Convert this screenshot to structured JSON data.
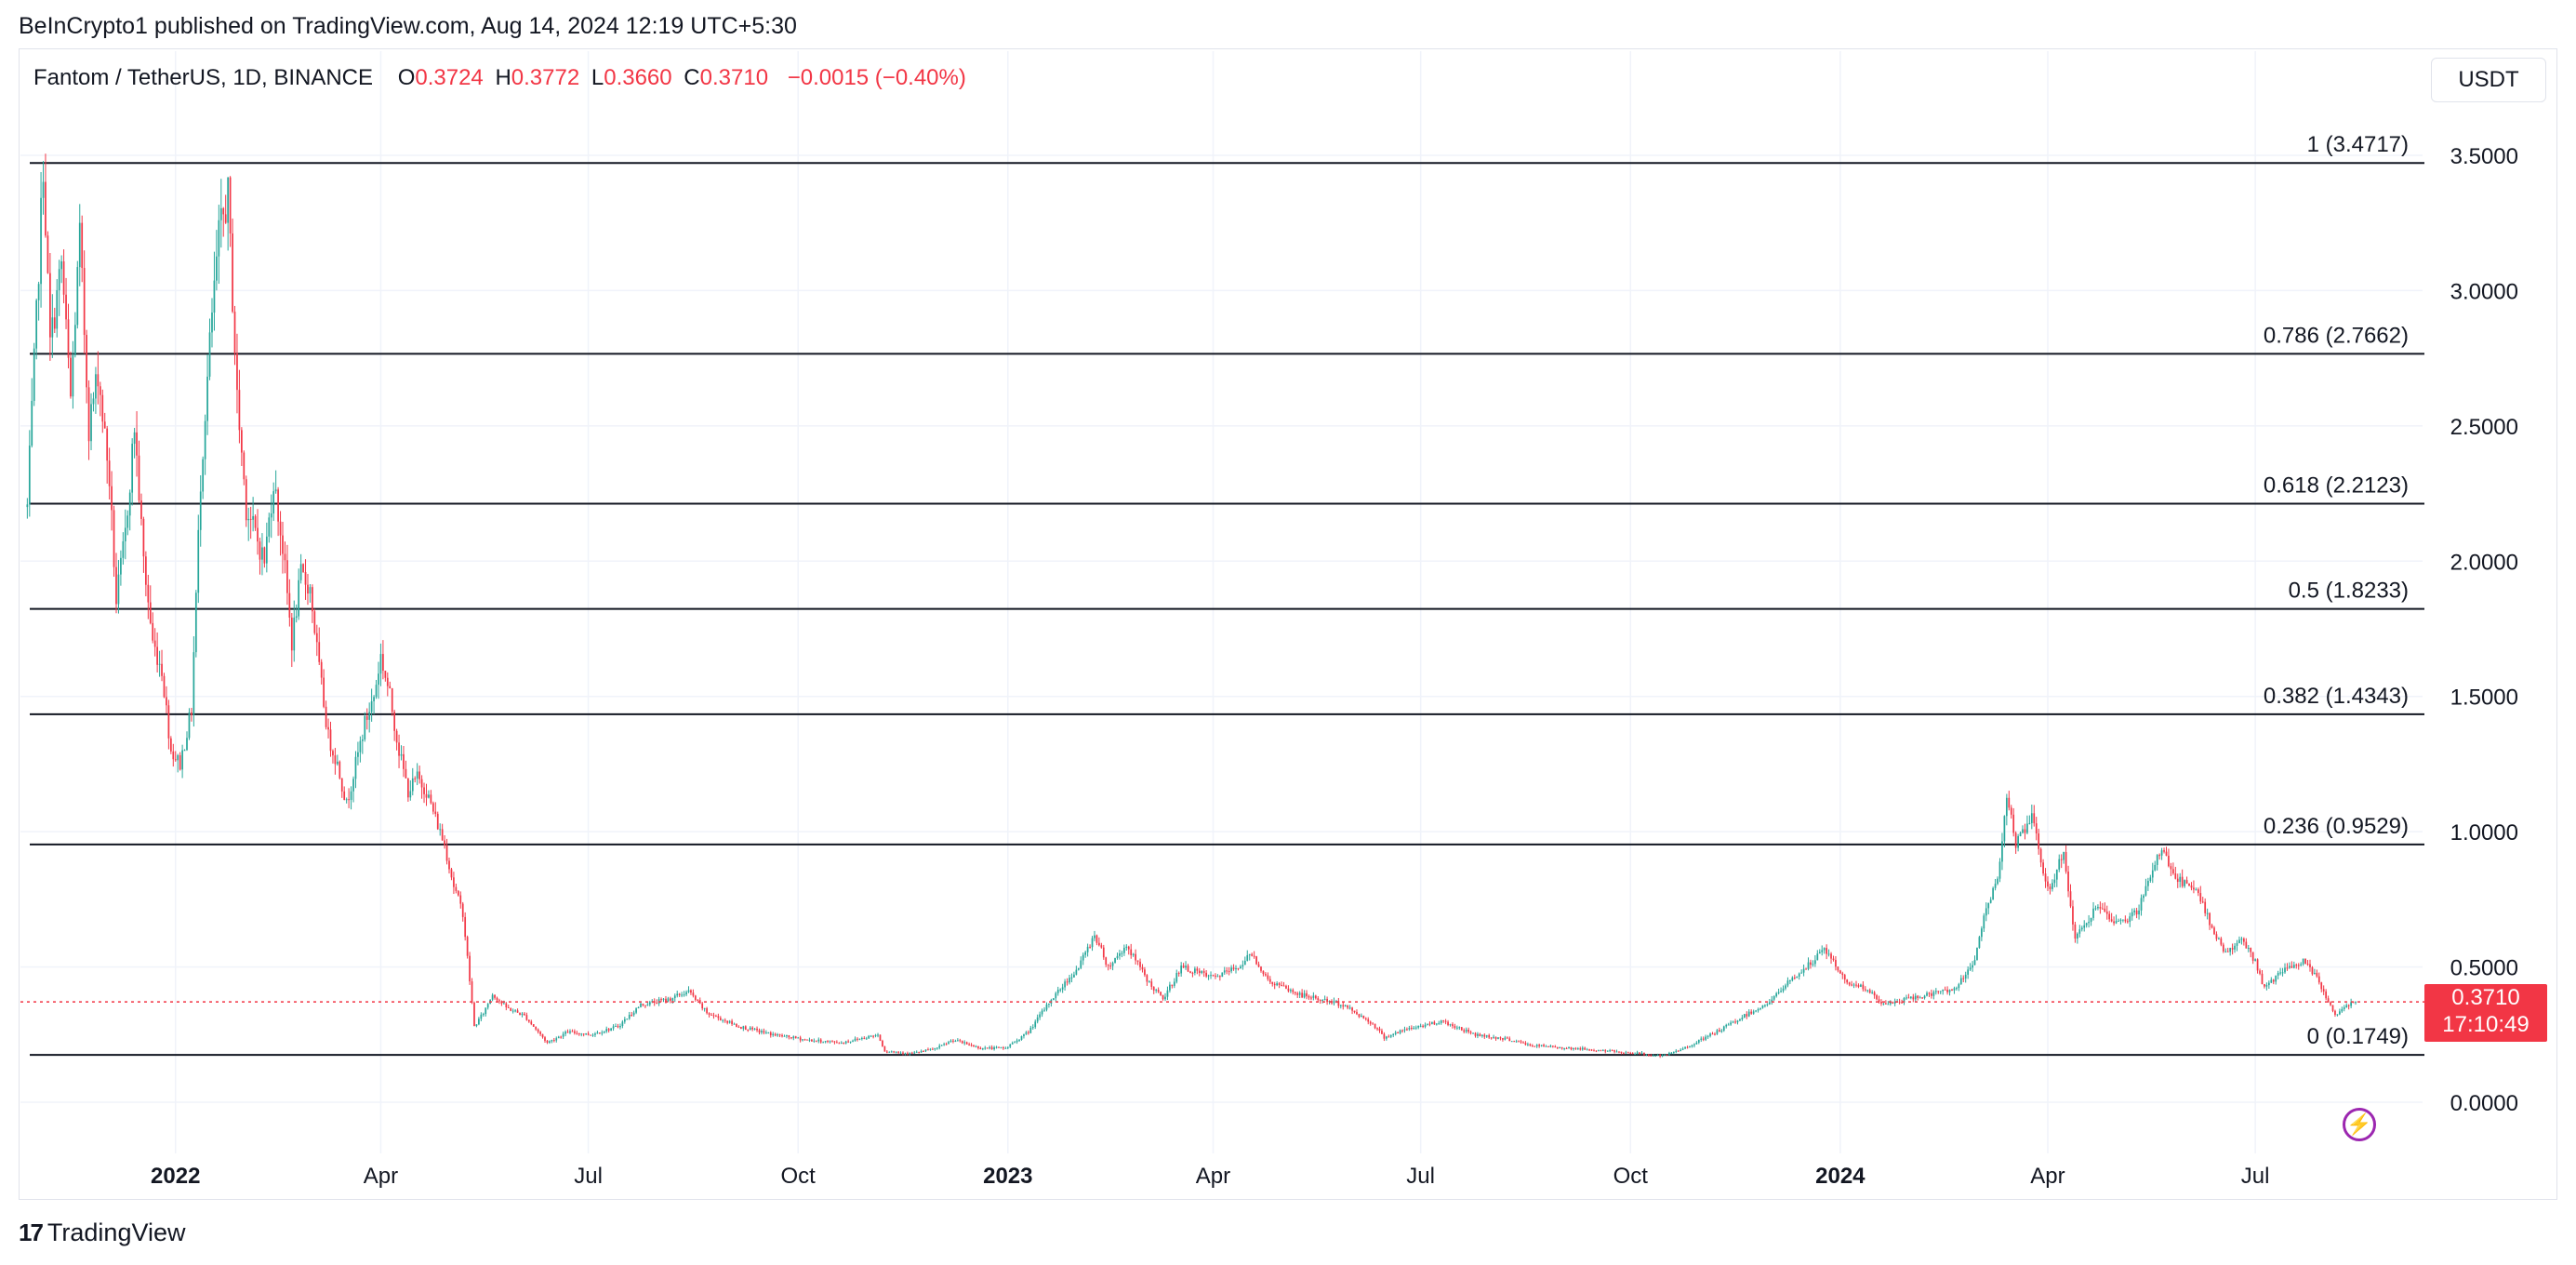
{
  "header": {
    "published_by": "BeInCrypto1 published on TradingView.com, Aug 14, 2024 12:19 UTC+5:30"
  },
  "legend": {
    "symbol": "Fantom / TetherUS, 1D, BINANCE",
    "open_label": "O",
    "open_value": "0.3724",
    "high_label": "H",
    "high_value": "0.3772",
    "low_label": "L",
    "low_value": "0.3660",
    "close_label": "C",
    "close_value": "0.3710",
    "change": "−0.0015 (−0.40%)"
  },
  "currency_button": "USDT",
  "price_tag": {
    "price": "0.3710",
    "countdown": "17:10:49"
  },
  "footer": {
    "brand": "TradingView"
  },
  "colors": {
    "up": "#26a69a",
    "down": "#f23645",
    "grid": "#f0f3fa",
    "fib_line": "#131722",
    "accent_bolt": "#9c27b0"
  },
  "icons": {
    "bolt": "lightning-bolt-icon",
    "logo": "tradingview-logo-icon"
  },
  "chart_data": {
    "type": "candlestick",
    "y_ticks": [
      "3.5000",
      "3.0000",
      "2.5000",
      "2.0000",
      "1.5000",
      "1.0000",
      "0.5000",
      "0.0000"
    ],
    "y_tick_values": [
      3.5,
      3.0,
      2.5,
      2.0,
      1.5,
      1.0,
      0.5,
      0.0
    ],
    "ylim": [
      -0.16,
      3.66
    ],
    "x_ticks": [
      {
        "label": "2022",
        "date": "2022-01-01",
        "bold": true
      },
      {
        "label": "Apr",
        "date": "2022-04-01",
        "bold": false
      },
      {
        "label": "Jul",
        "date": "2022-07-01",
        "bold": false
      },
      {
        "label": "Oct",
        "date": "2022-10-01",
        "bold": false
      },
      {
        "label": "2023",
        "date": "2023-01-01",
        "bold": true
      },
      {
        "label": "Apr",
        "date": "2023-04-01",
        "bold": false
      },
      {
        "label": "Jul",
        "date": "2023-07-01",
        "bold": false
      },
      {
        "label": "Oct",
        "date": "2023-10-01",
        "bold": false
      },
      {
        "label": "2024",
        "date": "2024-01-01",
        "bold": true
      },
      {
        "label": "Apr",
        "date": "2024-04-01",
        "bold": false
      },
      {
        "label": "Jul",
        "date": "2024-07-01",
        "bold": false
      }
    ],
    "xlim": [
      "2021-10-25",
      "2024-08-25"
    ],
    "fib_levels": [
      {
        "label": "1 (3.4717)",
        "value": 3.4717
      },
      {
        "label": "0.786 (2.7662)",
        "value": 2.7662
      },
      {
        "label": "0.618 (2.2123)",
        "value": 2.2123
      },
      {
        "label": "0.5 (1.8233)",
        "value": 1.8233
      },
      {
        "label": "0.382 (1.4343)",
        "value": 1.4343
      },
      {
        "label": "0.236 (0.9529)",
        "value": 0.9529
      },
      {
        "label": "0 (0.1749)",
        "value": 0.1749
      }
    ],
    "last_price": 0.371,
    "price_path": [
      [
        "2021-10-28",
        2.2
      ],
      [
        "2021-11-01",
        2.9
      ],
      [
        "2021-11-04",
        3.47
      ],
      [
        "2021-11-07",
        2.8
      ],
      [
        "2021-11-12",
        3.1
      ],
      [
        "2021-11-16",
        2.6
      ],
      [
        "2021-11-20",
        3.2
      ],
      [
        "2021-11-24",
        2.5
      ],
      [
        "2021-11-28",
        2.7
      ],
      [
        "2021-12-03",
        2.3
      ],
      [
        "2021-12-06",
        1.85
      ],
      [
        "2021-12-10",
        2.1
      ],
      [
        "2021-12-14",
        2.5
      ],
      [
        "2021-12-18",
        2.0
      ],
      [
        "2021-12-22",
        1.7
      ],
      [
        "2021-12-26",
        1.6
      ],
      [
        "2021-12-30",
        1.3
      ],
      [
        "2022-01-03",
        1.25
      ],
      [
        "2022-01-08",
        1.45
      ],
      [
        "2022-01-12",
        2.3
      ],
      [
        "2022-01-16",
        2.8
      ],
      [
        "2022-01-20",
        3.2
      ],
      [
        "2022-01-24",
        3.35
      ],
      [
        "2022-01-28",
        2.6
      ],
      [
        "2022-02-01",
        2.2
      ],
      [
        "2022-02-05",
        2.1
      ],
      [
        "2022-02-09",
        2.0
      ],
      [
        "2022-02-13",
        2.3
      ],
      [
        "2022-02-17",
        2.05
      ],
      [
        "2022-02-21",
        1.7
      ],
      [
        "2022-02-25",
        1.95
      ],
      [
        "2022-03-01",
        1.9
      ],
      [
        "2022-03-05",
        1.6
      ],
      [
        "2022-03-09",
        1.35
      ],
      [
        "2022-03-13",
        1.25
      ],
      [
        "2022-03-17",
        1.1
      ],
      [
        "2022-03-21",
        1.25
      ],
      [
        "2022-03-25",
        1.4
      ],
      [
        "2022-03-29",
        1.5
      ],
      [
        "2022-04-01",
        1.65
      ],
      [
        "2022-04-05",
        1.5
      ],
      [
        "2022-04-09",
        1.3
      ],
      [
        "2022-04-13",
        1.15
      ],
      [
        "2022-04-17",
        1.2
      ],
      [
        "2022-04-21",
        1.15
      ],
      [
        "2022-04-25",
        1.05
      ],
      [
        "2022-04-29",
        0.95
      ],
      [
        "2022-05-03",
        0.8
      ],
      [
        "2022-05-07",
        0.7
      ],
      [
        "2022-05-10",
        0.45
      ],
      [
        "2022-05-12",
        0.28
      ],
      [
        "2022-05-16",
        0.33
      ],
      [
        "2022-05-20",
        0.4
      ],
      [
        "2022-05-26",
        0.35
      ],
      [
        "2022-06-03",
        0.32
      ],
      [
        "2022-06-13",
        0.22
      ],
      [
        "2022-06-22",
        0.26
      ],
      [
        "2022-07-02",
        0.25
      ],
      [
        "2022-07-14",
        0.28
      ],
      [
        "2022-07-24",
        0.36
      ],
      [
        "2022-08-05",
        0.38
      ],
      [
        "2022-08-14",
        0.41
      ],
      [
        "2022-08-22",
        0.33
      ],
      [
        "2022-09-05",
        0.28
      ],
      [
        "2022-09-20",
        0.25
      ],
      [
        "2022-10-05",
        0.23
      ],
      [
        "2022-10-20",
        0.22
      ],
      [
        "2022-11-05",
        0.25
      ],
      [
        "2022-11-08",
        0.19
      ],
      [
        "2022-11-20",
        0.18
      ],
      [
        "2022-12-01",
        0.2
      ],
      [
        "2022-12-08",
        0.23
      ],
      [
        "2022-12-20",
        0.2
      ],
      [
        "2022-12-31",
        0.2
      ],
      [
        "2023-01-10",
        0.26
      ],
      [
        "2023-01-20",
        0.38
      ],
      [
        "2023-02-01",
        0.5
      ],
      [
        "2023-02-08",
        0.62
      ],
      [
        "2023-02-14",
        0.5
      ],
      [
        "2023-02-22",
        0.58
      ],
      [
        "2023-03-04",
        0.44
      ],
      [
        "2023-03-10",
        0.38
      ],
      [
        "2023-03-18",
        0.5
      ],
      [
        "2023-04-01",
        0.46
      ],
      [
        "2023-04-12",
        0.5
      ],
      [
        "2023-04-18",
        0.55
      ],
      [
        "2023-04-25",
        0.45
      ],
      [
        "2023-05-08",
        0.4
      ],
      [
        "2023-05-28",
        0.36
      ],
      [
        "2023-06-10",
        0.29
      ],
      [
        "2023-06-15",
        0.24
      ],
      [
        "2023-06-25",
        0.27
      ],
      [
        "2023-07-10",
        0.3
      ],
      [
        "2023-07-25",
        0.25
      ],
      [
        "2023-08-10",
        0.23
      ],
      [
        "2023-08-18",
        0.21
      ],
      [
        "2023-09-05",
        0.2
      ],
      [
        "2023-09-20",
        0.19
      ],
      [
        "2023-10-05",
        0.18
      ],
      [
        "2023-10-15",
        0.17
      ],
      [
        "2023-10-22",
        0.19
      ],
      [
        "2023-11-01",
        0.23
      ],
      [
        "2023-11-10",
        0.27
      ],
      [
        "2023-11-20",
        0.32
      ],
      [
        "2023-12-01",
        0.37
      ],
      [
        "2023-12-10",
        0.45
      ],
      [
        "2023-12-20",
        0.52
      ],
      [
        "2023-12-25",
        0.57
      ],
      [
        "2024-01-03",
        0.45
      ],
      [
        "2024-01-12",
        0.42
      ],
      [
        "2024-01-20",
        0.36
      ],
      [
        "2024-01-30",
        0.38
      ],
      [
        "2024-02-10",
        0.4
      ],
      [
        "2024-02-20",
        0.42
      ],
      [
        "2024-02-28",
        0.5
      ],
      [
        "2024-03-05",
        0.72
      ],
      [
        "2024-03-10",
        0.82
      ],
      [
        "2024-03-14",
        1.15
      ],
      [
        "2024-03-18",
        0.95
      ],
      [
        "2024-03-25",
        1.05
      ],
      [
        "2024-04-01",
        0.78
      ],
      [
        "2024-04-08",
        0.92
      ],
      [
        "2024-04-13",
        0.6
      ],
      [
        "2024-04-22",
        0.72
      ],
      [
        "2024-05-01",
        0.66
      ],
      [
        "2024-05-10",
        0.7
      ],
      [
        "2024-05-21",
        0.94
      ],
      [
        "2024-05-28",
        0.82
      ],
      [
        "2024-06-05",
        0.78
      ],
      [
        "2024-06-12",
        0.65
      ],
      [
        "2024-06-18",
        0.55
      ],
      [
        "2024-06-25",
        0.6
      ],
      [
        "2024-07-01",
        0.52
      ],
      [
        "2024-07-05",
        0.42
      ],
      [
        "2024-07-12",
        0.48
      ],
      [
        "2024-07-22",
        0.52
      ],
      [
        "2024-07-28",
        0.46
      ],
      [
        "2024-08-05",
        0.32
      ],
      [
        "2024-08-10",
        0.36
      ],
      [
        "2024-08-14",
        0.371
      ]
    ]
  }
}
